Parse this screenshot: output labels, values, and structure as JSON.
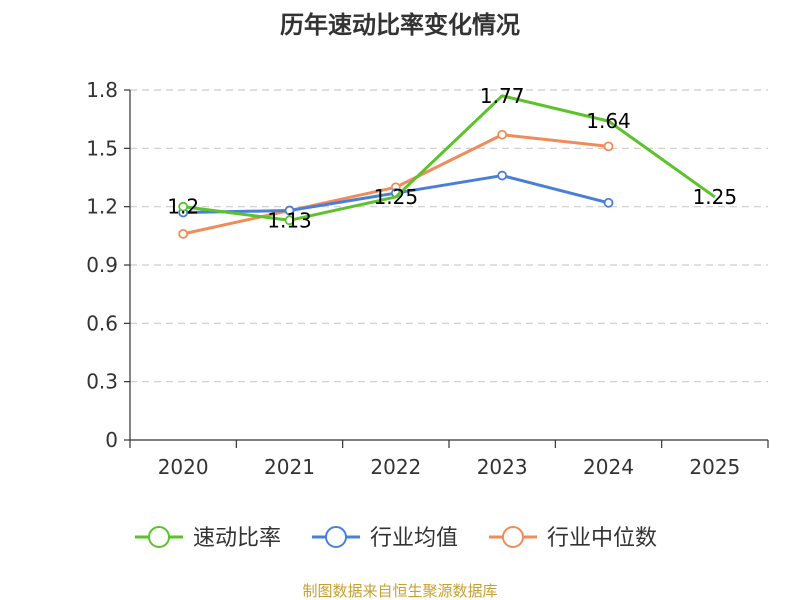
{
  "chart_data": {
    "type": "line",
    "title": "历年速动比率变化情况",
    "categories": [
      "2020",
      "2021",
      "2022",
      "2023",
      "2024",
      "2025"
    ],
    "ylim": [
      0,
      1.8
    ],
    "yticks": [
      "0",
      "0.3",
      "0.6",
      "0.9",
      "1.2",
      "1.5",
      "1.8"
    ],
    "grid": true,
    "legend_position": "bottom",
    "series": [
      {
        "name": "速动比率",
        "color": "#5bc22c",
        "values": [
          1.2,
          1.13,
          1.25,
          1.77,
          1.64,
          1.25
        ],
        "labels": [
          "1.2",
          "1.13",
          "1.25",
          "1.77",
          "1.64",
          "1.25"
        ],
        "show_markers": [
          true,
          true,
          false,
          false,
          false,
          false
        ]
      },
      {
        "name": "行业均值",
        "color": "#4a7fd8",
        "values": [
          1.17,
          1.18,
          1.27,
          1.36,
          1.22,
          null
        ],
        "labels": [],
        "show_markers": [
          true,
          true,
          true,
          true,
          true,
          false
        ]
      },
      {
        "name": "行业中位数",
        "color": "#f08c5a",
        "values": [
          1.06,
          1.18,
          1.3,
          1.57,
          1.51,
          null
        ],
        "labels": [],
        "show_markers": [
          true,
          true,
          true,
          true,
          true,
          false
        ]
      }
    ],
    "source": "制图数据来自恒生聚源数据库"
  }
}
